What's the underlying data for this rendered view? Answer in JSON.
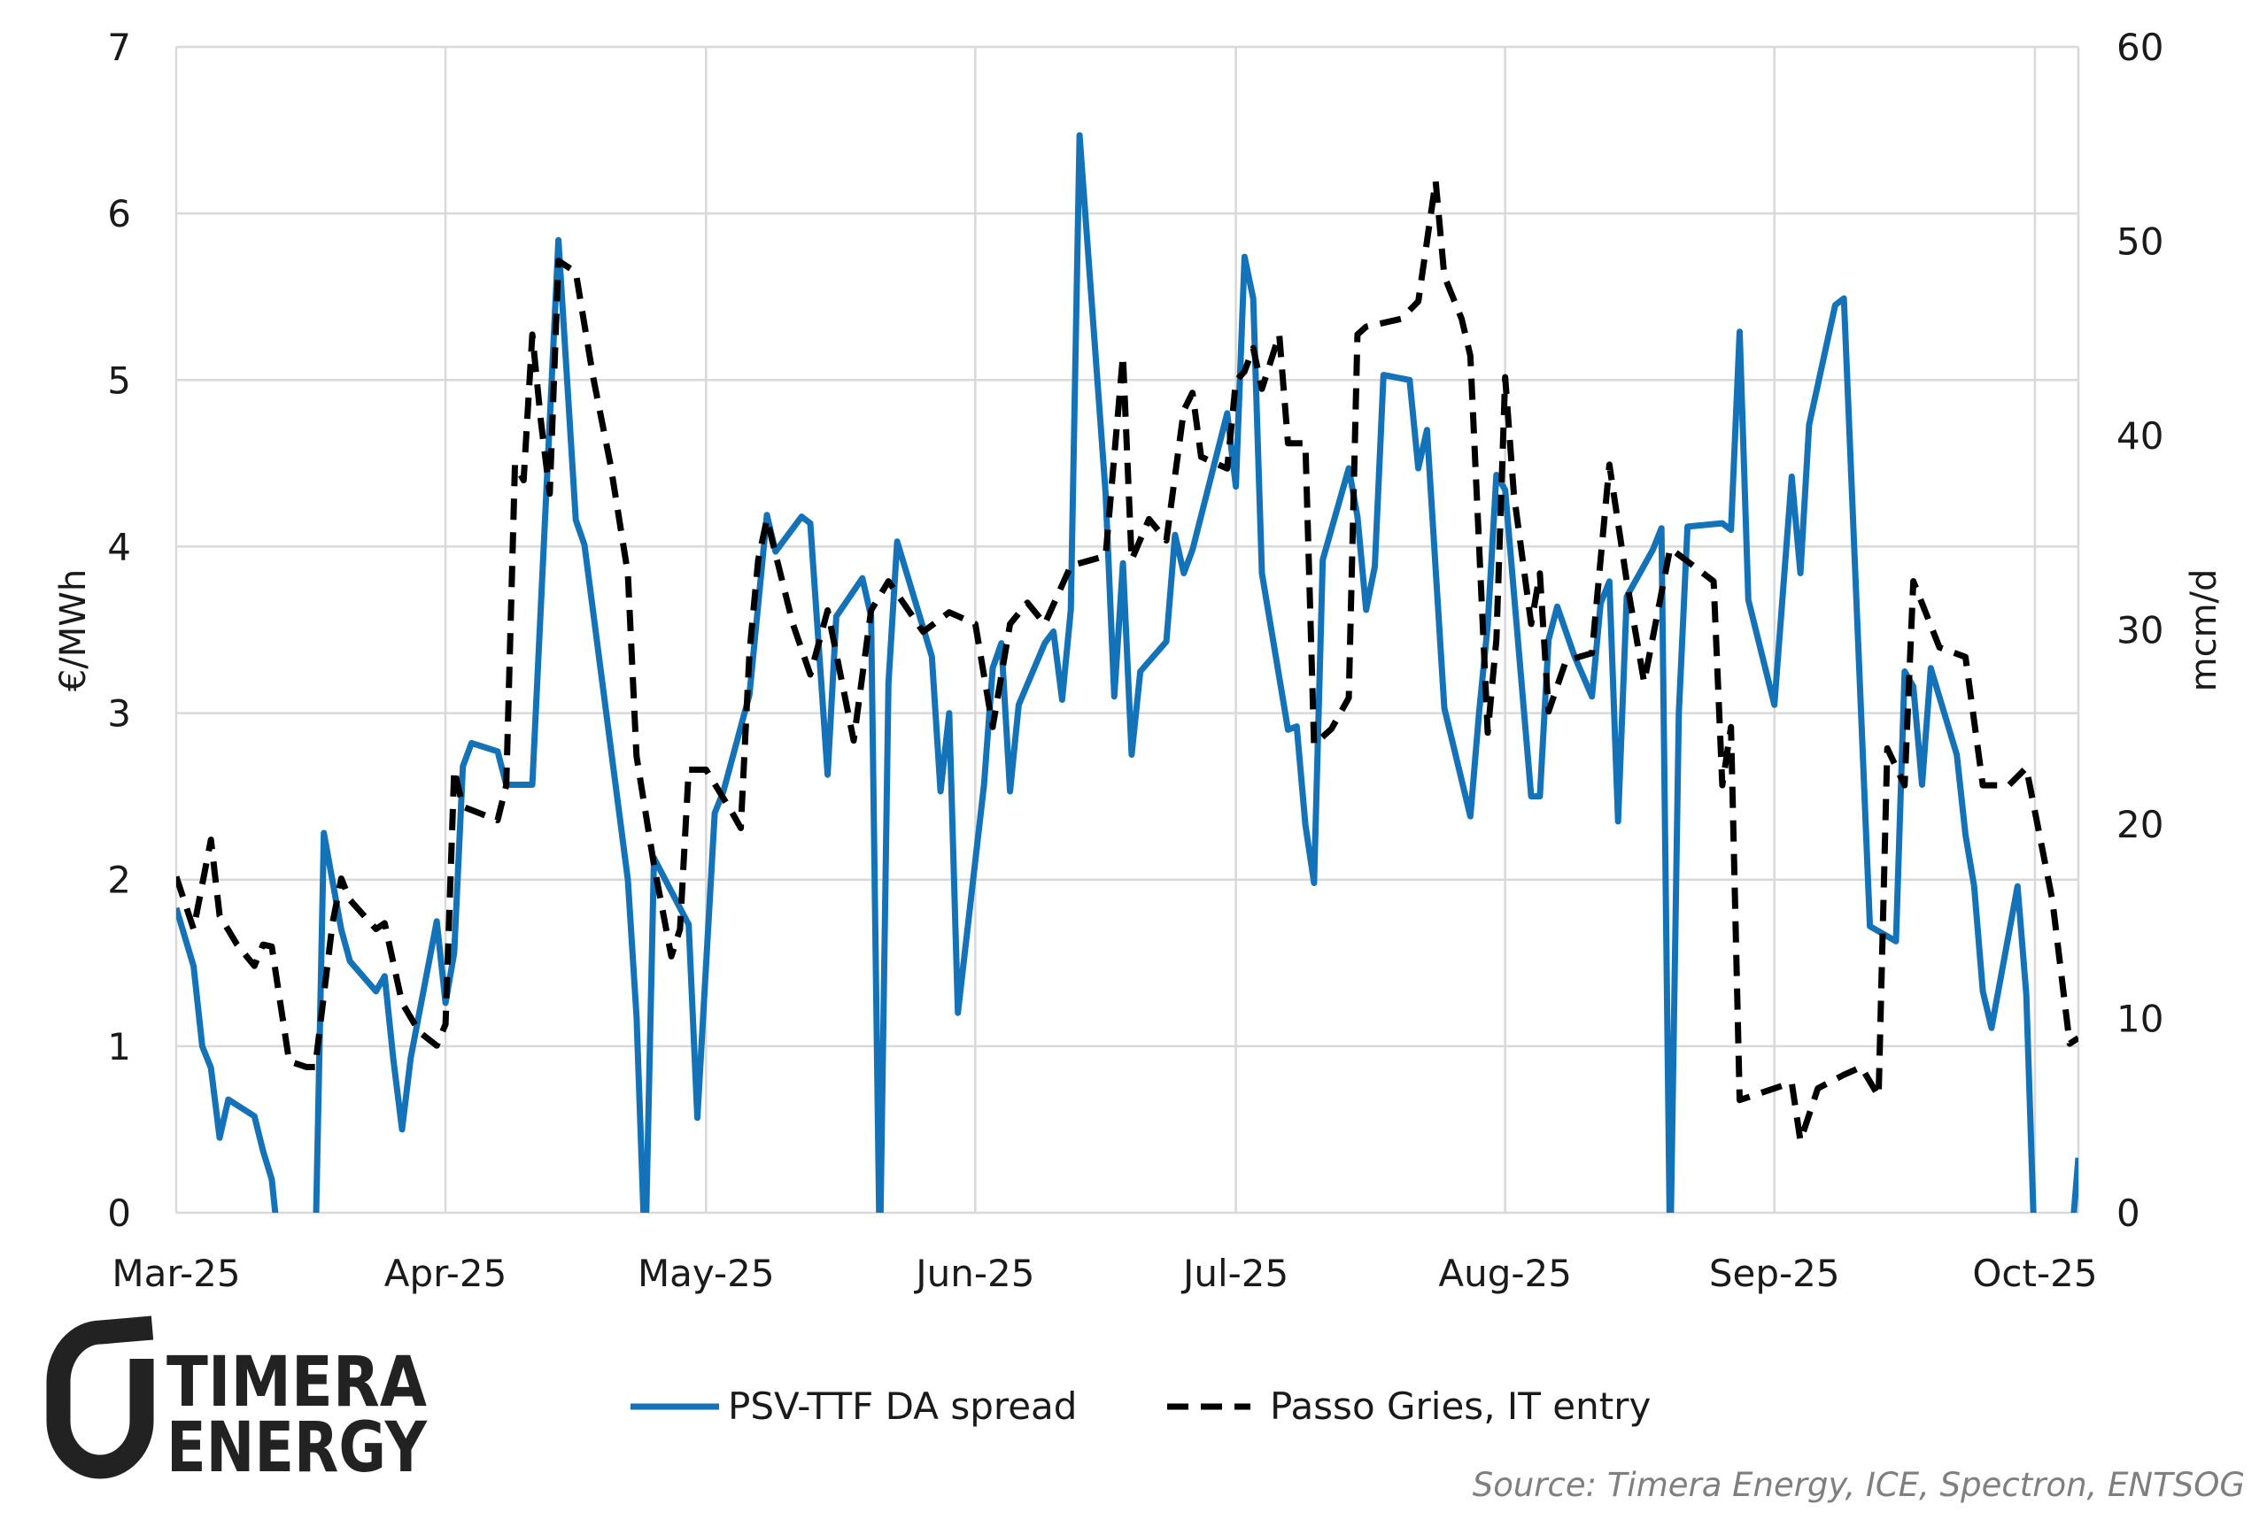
{
  "chart_data": {
    "type": "line",
    "title": "",
    "xlabel": "",
    "ylabel": "€/MWh",
    "y2label": "mcm/d",
    "xlim": [
      "2025-03-01",
      "2025-10-06"
    ],
    "ylim": [
      0,
      7
    ],
    "y2lim": [
      0,
      60
    ],
    "x_ticks": [
      {
        "date": "2025-03-01",
        "label": "Mar-25"
      },
      {
        "date": "2025-04-01",
        "label": "Apr-25"
      },
      {
        "date": "2025-05-01",
        "label": "May-25"
      },
      {
        "date": "2025-06-01",
        "label": "Jun-25"
      },
      {
        "date": "2025-07-01",
        "label": "Jul-25"
      },
      {
        "date": "2025-08-01",
        "label": "Aug-25"
      },
      {
        "date": "2025-09-01",
        "label": "Sep-25"
      },
      {
        "date": "2025-10-01",
        "label": "Oct-25"
      }
    ],
    "y_ticks": [
      "0",
      "1",
      "2",
      "3",
      "4",
      "5",
      "6",
      "7"
    ],
    "y2_ticks": [
      "0",
      "10",
      "20",
      "30",
      "40",
      "50",
      "60"
    ],
    "grid": true,
    "legend_position": "bottom",
    "series": [
      {
        "name": "PSV-TTF DA spread",
        "axis": "left",
        "color": "#1473b8",
        "style": "solid",
        "points": [
          [
            "2025-03-01",
            1.83
          ],
          [
            "2025-03-03",
            1.48
          ],
          [
            "2025-03-04",
            1.0
          ],
          [
            "2025-03-05",
            0.87
          ],
          [
            "2025-03-06",
            0.45
          ],
          [
            "2025-03-07",
            0.68
          ],
          [
            "2025-03-10",
            0.58
          ],
          [
            "2025-03-11",
            0.37
          ],
          [
            "2025-03-12",
            0.2
          ],
          [
            "2025-03-13",
            -0.3
          ],
          [
            "2025-03-17",
            -0.3
          ],
          [
            "2025-03-18",
            2.28
          ],
          [
            "2025-03-20",
            1.7
          ],
          [
            "2025-03-21",
            1.51
          ],
          [
            "2025-03-24",
            1.33
          ],
          [
            "2025-03-25",
            1.42
          ],
          [
            "2025-03-26",
            0.92
          ],
          [
            "2025-03-27",
            0.5
          ],
          [
            "2025-03-28",
            0.93
          ],
          [
            "2025-03-31",
            1.75
          ],
          [
            "2025-04-01",
            1.26
          ],
          [
            "2025-04-02",
            1.56
          ],
          [
            "2025-04-03",
            2.68
          ],
          [
            "2025-04-04",
            2.82
          ],
          [
            "2025-04-07",
            2.77
          ],
          [
            "2025-04-08",
            2.57
          ],
          [
            "2025-04-11",
            2.57
          ],
          [
            "2025-04-14",
            5.84
          ],
          [
            "2025-04-16",
            4.16
          ],
          [
            "2025-04-17",
            4.01
          ],
          [
            "2025-04-22",
            2.0
          ],
          [
            "2025-04-23",
            1.18
          ],
          [
            "2025-04-24",
            -0.3
          ],
          [
            "2025-04-25",
            2.13
          ],
          [
            "2025-04-29",
            1.73
          ],
          [
            "2025-04-30",
            0.57
          ],
          [
            "2025-05-02",
            2.4
          ],
          [
            "2025-05-03",
            2.53
          ],
          [
            "2025-05-06",
            3.11
          ],
          [
            "2025-05-08",
            4.19
          ],
          [
            "2025-05-09",
            3.97
          ],
          [
            "2025-05-12",
            4.18
          ],
          [
            "2025-05-13",
            4.14
          ],
          [
            "2025-05-15",
            2.63
          ],
          [
            "2025-05-16",
            3.58
          ],
          [
            "2025-05-19",
            3.81
          ],
          [
            "2025-05-20",
            3.58
          ],
          [
            "2025-05-21",
            -0.3
          ],
          [
            "2025-05-22",
            3.18
          ],
          [
            "2025-05-23",
            4.03
          ],
          [
            "2025-05-27",
            3.34
          ],
          [
            "2025-05-28",
            2.53
          ],
          [
            "2025-05-29",
            3.0
          ],
          [
            "2025-05-30",
            1.2
          ],
          [
            "2025-06-02",
            2.57
          ],
          [
            "2025-06-03",
            3.27
          ],
          [
            "2025-06-04",
            3.42
          ],
          [
            "2025-06-05",
            2.53
          ],
          [
            "2025-06-06",
            3.05
          ],
          [
            "2025-06-09",
            3.42
          ],
          [
            "2025-06-10",
            3.49
          ],
          [
            "2025-06-11",
            3.08
          ],
          [
            "2025-06-12",
            3.62
          ],
          [
            "2025-06-13",
            6.47
          ],
          [
            "2025-06-16",
            4.32
          ],
          [
            "2025-06-17",
            3.1
          ],
          [
            "2025-06-18",
            3.9
          ],
          [
            "2025-06-19",
            2.75
          ],
          [
            "2025-06-20",
            3.25
          ],
          [
            "2025-06-23",
            3.43
          ],
          [
            "2025-06-24",
            4.07
          ],
          [
            "2025-06-25",
            3.84
          ],
          [
            "2025-06-26",
            3.98
          ],
          [
            "2025-06-30",
            4.8
          ],
          [
            "2025-07-01",
            4.36
          ],
          [
            "2025-07-02",
            5.74
          ],
          [
            "2025-07-03",
            5.49
          ],
          [
            "2025-07-04",
            3.84
          ],
          [
            "2025-07-07",
            2.9
          ],
          [
            "2025-07-08",
            2.92
          ],
          [
            "2025-07-09",
            2.33
          ],
          [
            "2025-07-10",
            1.98
          ],
          [
            "2025-07-11",
            3.92
          ],
          [
            "2025-07-14",
            4.47
          ],
          [
            "2025-07-15",
            4.18
          ],
          [
            "2025-07-16",
            3.62
          ],
          [
            "2025-07-17",
            3.88
          ],
          [
            "2025-07-18",
            5.03
          ],
          [
            "2025-07-21",
            5.0
          ],
          [
            "2025-07-22",
            4.47
          ],
          [
            "2025-07-23",
            4.7
          ],
          [
            "2025-07-25",
            3.03
          ],
          [
            "2025-07-28",
            2.38
          ],
          [
            "2025-07-29",
            3.0
          ],
          [
            "2025-07-30",
            3.53
          ],
          [
            "2025-07-31",
            4.43
          ],
          [
            "2025-08-01",
            4.34
          ],
          [
            "2025-08-04",
            2.5
          ],
          [
            "2025-08-05",
            2.5
          ],
          [
            "2025-08-06",
            3.44
          ],
          [
            "2025-08-07",
            3.64
          ],
          [
            "2025-08-09",
            3.34
          ],
          [
            "2025-08-11",
            3.1
          ],
          [
            "2025-08-12",
            3.66
          ],
          [
            "2025-08-13",
            3.79
          ],
          [
            "2025-08-14",
            2.35
          ],
          [
            "2025-08-15",
            3.7
          ],
          [
            "2025-08-18",
            3.98
          ],
          [
            "2025-08-19",
            4.11
          ],
          [
            "2025-08-20",
            -0.3
          ],
          [
            "2025-08-21",
            3.0
          ],
          [
            "2025-08-22",
            4.12
          ],
          [
            "2025-08-26",
            4.14
          ],
          [
            "2025-08-27",
            4.1
          ],
          [
            "2025-08-28",
            5.29
          ],
          [
            "2025-08-29",
            3.68
          ],
          [
            "2025-09-01",
            3.05
          ],
          [
            "2025-09-03",
            4.42
          ],
          [
            "2025-09-04",
            3.84
          ],
          [
            "2025-09-05",
            4.73
          ],
          [
            "2025-09-08",
            5.45
          ],
          [
            "2025-09-09",
            5.49
          ],
          [
            "2025-09-12",
            1.72
          ],
          [
            "2025-09-15",
            1.63
          ],
          [
            "2025-09-16",
            3.25
          ],
          [
            "2025-09-17",
            3.16
          ],
          [
            "2025-09-18",
            2.57
          ],
          [
            "2025-09-19",
            3.27
          ],
          [
            "2025-09-22",
            2.75
          ],
          [
            "2025-09-23",
            2.27
          ],
          [
            "2025-09-24",
            1.96
          ],
          [
            "2025-09-25",
            1.33
          ],
          [
            "2025-09-26",
            1.11
          ],
          [
            "2025-09-29",
            1.96
          ],
          [
            "2025-09-30",
            1.31
          ],
          [
            "2025-10-01",
            -0.3
          ],
          [
            "2025-10-05",
            -0.3
          ],
          [
            "2025-10-06",
            0.33
          ]
        ]
      },
      {
        "name": "Passo Gries, IT entry",
        "axis": "right",
        "color": "#000000",
        "style": "dashed",
        "points": [
          [
            "2025-03-01",
            17.3
          ],
          [
            "2025-03-03",
            14.6
          ],
          [
            "2025-03-05",
            19.2
          ],
          [
            "2025-03-06",
            15.3
          ],
          [
            "2025-03-08",
            13.8
          ],
          [
            "2025-03-10",
            12.7
          ],
          [
            "2025-03-11",
            13.8
          ],
          [
            "2025-03-12",
            13.7
          ],
          [
            "2025-03-14",
            7.8
          ],
          [
            "2025-03-16",
            7.5
          ],
          [
            "2025-03-17",
            7.5
          ],
          [
            "2025-03-19",
            14.9
          ],
          [
            "2025-03-20",
            17.2
          ],
          [
            "2025-03-21",
            16.1
          ],
          [
            "2025-03-24",
            14.6
          ],
          [
            "2025-03-25",
            14.9
          ],
          [
            "2025-03-27",
            10.8
          ],
          [
            "2025-03-29",
            9.3
          ],
          [
            "2025-03-31",
            8.6
          ],
          [
            "2025-04-01",
            9.7
          ],
          [
            "2025-04-02",
            22.8
          ],
          [
            "2025-04-03",
            20.9
          ],
          [
            "2025-04-07",
            20.2
          ],
          [
            "2025-04-08",
            22.0
          ],
          [
            "2025-04-09",
            38.5
          ],
          [
            "2025-04-10",
            37.7
          ],
          [
            "2025-04-11",
            45.2
          ],
          [
            "2025-04-12",
            40.7
          ],
          [
            "2025-04-13",
            37.0
          ],
          [
            "2025-04-14",
            49.0
          ],
          [
            "2025-04-16",
            48.4
          ],
          [
            "2025-04-18",
            43.0
          ],
          [
            "2025-04-20",
            38.5
          ],
          [
            "2025-04-22",
            32.9
          ],
          [
            "2025-04-23",
            23.5
          ],
          [
            "2025-04-25",
            17.9
          ],
          [
            "2025-04-27",
            13.2
          ],
          [
            "2025-04-28",
            14.6
          ],
          [
            "2025-04-29",
            22.8
          ],
          [
            "2025-05-01",
            22.8
          ],
          [
            "2025-05-04",
            20.6
          ],
          [
            "2025-05-05",
            19.8
          ],
          [
            "2025-05-06",
            28.8
          ],
          [
            "2025-05-07",
            33.6
          ],
          [
            "2025-05-08",
            35.7
          ],
          [
            "2025-05-11",
            30.3
          ],
          [
            "2025-05-13",
            27.7
          ],
          [
            "2025-05-15",
            31.0
          ],
          [
            "2025-05-18",
            24.3
          ],
          [
            "2025-05-20",
            31.0
          ],
          [
            "2025-05-22",
            32.5
          ],
          [
            "2025-05-26",
            29.9
          ],
          [
            "2025-05-29",
            30.9
          ],
          [
            "2025-06-01",
            30.3
          ],
          [
            "2025-06-03",
            25.0
          ],
          [
            "2025-06-05",
            30.3
          ],
          [
            "2025-06-07",
            31.4
          ],
          [
            "2025-06-09",
            30.3
          ],
          [
            "2025-06-12",
            33.3
          ],
          [
            "2025-06-16",
            33.8
          ],
          [
            "2025-06-18",
            44.1
          ],
          [
            "2025-06-19",
            33.6
          ],
          [
            "2025-06-21",
            35.7
          ],
          [
            "2025-06-23",
            34.6
          ],
          [
            "2025-06-25",
            41.3
          ],
          [
            "2025-06-26",
            42.2
          ],
          [
            "2025-06-27",
            38.9
          ],
          [
            "2025-06-30",
            38.3
          ],
          [
            "2025-07-01",
            42.8
          ],
          [
            "2025-07-02",
            43.3
          ],
          [
            "2025-07-03",
            44.5
          ],
          [
            "2025-07-04",
            42.4
          ],
          [
            "2025-07-06",
            45.2
          ],
          [
            "2025-07-07",
            39.6
          ],
          [
            "2025-07-09",
            39.6
          ],
          [
            "2025-07-10",
            24.1
          ],
          [
            "2025-07-12",
            24.9
          ],
          [
            "2025-07-14",
            26.5
          ],
          [
            "2025-07-15",
            45.2
          ],
          [
            "2025-07-16",
            45.6
          ],
          [
            "2025-07-20",
            46.0
          ],
          [
            "2025-07-22",
            46.9
          ],
          [
            "2025-07-24",
            53.1
          ],
          [
            "2025-07-25",
            48.2
          ],
          [
            "2025-07-27",
            46.0
          ],
          [
            "2025-07-28",
            44.1
          ],
          [
            "2025-07-30",
            24.7
          ],
          [
            "2025-07-31",
            29.5
          ],
          [
            "2025-08-01",
            43.0
          ],
          [
            "2025-08-02",
            37.0
          ],
          [
            "2025-08-04",
            30.3
          ],
          [
            "2025-08-05",
            32.9
          ],
          [
            "2025-08-06",
            25.8
          ],
          [
            "2025-08-08",
            28.4
          ],
          [
            "2025-08-11",
            28.8
          ],
          [
            "2025-08-13",
            38.5
          ],
          [
            "2025-08-15",
            32.5
          ],
          [
            "2025-08-17",
            27.3
          ],
          [
            "2025-08-20",
            34.2
          ],
          [
            "2025-08-25",
            32.5
          ],
          [
            "2025-08-26",
            22.0
          ],
          [
            "2025-08-27",
            25.0
          ],
          [
            "2025-08-28",
            5.8
          ],
          [
            "2025-09-03",
            6.7
          ],
          [
            "2025-09-04",
            3.7
          ],
          [
            "2025-09-06",
            6.4
          ],
          [
            "2025-09-09",
            7.1
          ],
          [
            "2025-09-11",
            7.5
          ],
          [
            "2025-09-13",
            6.0
          ],
          [
            "2025-09-14",
            23.9
          ],
          [
            "2025-09-16",
            22.0
          ],
          [
            "2025-09-17",
            32.5
          ],
          [
            "2025-09-20",
            29.1
          ],
          [
            "2025-09-23",
            28.6
          ],
          [
            "2025-09-25",
            22.0
          ],
          [
            "2025-09-28",
            22.0
          ],
          [
            "2025-09-30",
            22.9
          ],
          [
            "2025-10-03",
            16.1
          ],
          [
            "2025-10-05",
            8.7
          ],
          [
            "2025-10-06",
            9.0
          ]
        ]
      }
    ],
    "source": "Source: Timera Energy, ICE, Spectron, ENTSOG"
  },
  "logo": {
    "line1": "TIMERA",
    "line2": "ENERGY"
  }
}
